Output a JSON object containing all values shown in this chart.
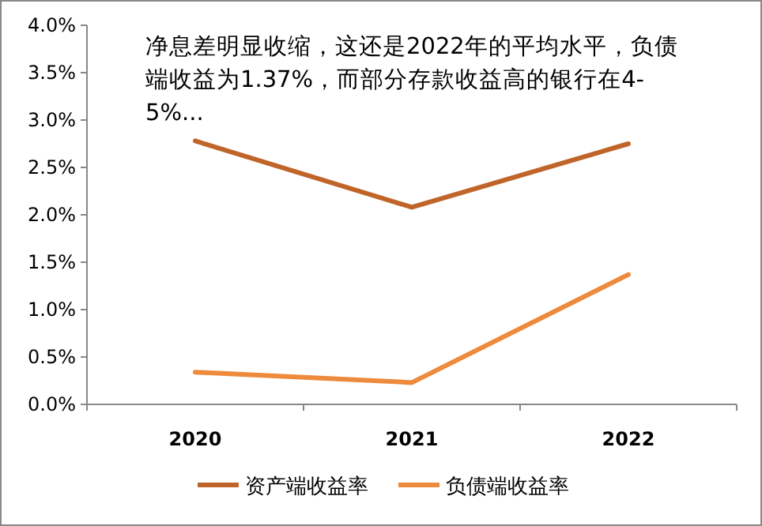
{
  "chart_data": {
    "type": "line",
    "categories": [
      "2020",
      "2021",
      "2022"
    ],
    "series": [
      {
        "name": "资产端收益率",
        "color": "#c0652a",
        "values": [
          2.78,
          2.08,
          2.75
        ]
      },
      {
        "name": "负债端收益率",
        "color": "#ed8a3c",
        "values": [
          0.34,
          0.23,
          1.37
        ]
      }
    ],
    "ylim": [
      0,
      4
    ],
    "yticks": [
      {
        "value": 0,
        "label": "0.0%"
      },
      {
        "value": 0.5,
        "label": "0.5%"
      },
      {
        "value": 1,
        "label": "1.0%"
      },
      {
        "value": 1.5,
        "label": "1.5%"
      },
      {
        "value": 2,
        "label": "2.0%"
      },
      {
        "value": 2.5,
        "label": "2.5%"
      },
      {
        "value": 3,
        "label": "3.0%"
      },
      {
        "value": 3.5,
        "label": "3.5%"
      },
      {
        "value": 4,
        "label": "4.0%"
      }
    ],
    "annotations": [
      "净息差明显收缩，这还是2022年的平均水平，负债端收益为1.37%，而部分存款收益高的银行在4-5%..."
    ],
    "legend": "bottom",
    "grid": false,
    "marker": "none",
    "line_style": "solid"
  }
}
